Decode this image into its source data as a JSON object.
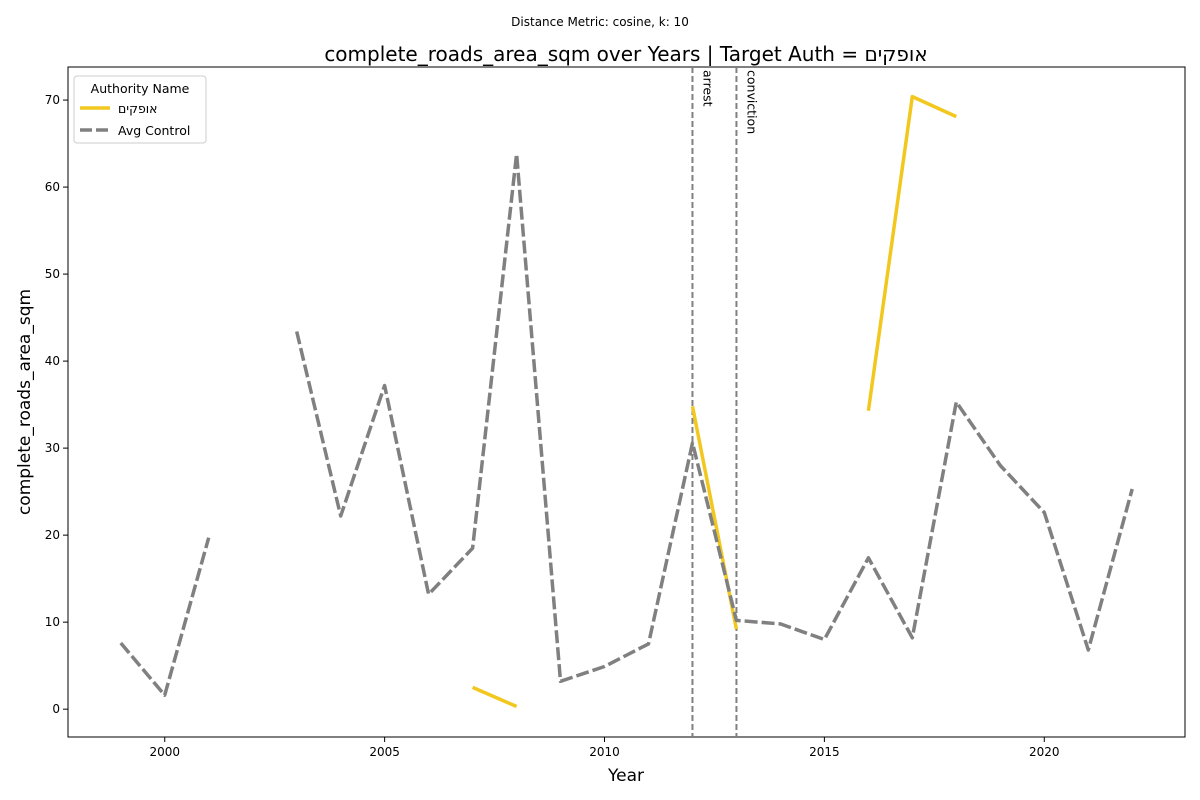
{
  "suptitle": "Distance Metric: cosine, k: 10",
  "chart_data": {
    "type": "line",
    "title": "complete_roads_area_sqm over Years | Target Auth = אופקים",
    "xlabel": "Year",
    "ylabel": "complete_roads_area_sqm",
    "xlim": [
      1997.8,
      2023.2
    ],
    "ylim": [
      -3.2,
      73.8
    ],
    "xticks": [
      2000,
      2005,
      2010,
      2015,
      2020
    ],
    "yticks": [
      0,
      10,
      20,
      30,
      40,
      50,
      60,
      70
    ],
    "grid": false,
    "legend": {
      "title": "Authority Name",
      "placement": "top-left"
    },
    "series": [
      {
        "name": "אופקים",
        "color": "#f2c81f",
        "style": "solid",
        "x": [
          2007,
          2008,
          2012,
          2013,
          2016,
          2017,
          2018
        ],
        "y": [
          2.5,
          0.3,
          34.8,
          9.2,
          34.3,
          70.4,
          68.1
        ],
        "segments": [
          [
            0,
            1
          ],
          [
            2,
            3
          ],
          [
            4,
            5,
            6
          ]
        ]
      },
      {
        "name": "Avg Control",
        "color": "#808080",
        "style": "dashed",
        "x": [
          1999,
          2000,
          2001,
          2003,
          2004,
          2005,
          2006,
          2007,
          2008,
          2009,
          2010,
          2011,
          2012,
          2013,
          2014,
          2015,
          2016,
          2017,
          2018,
          2019,
          2020,
          2021,
          2022
        ],
        "y": [
          7.6,
          1.6,
          19.7,
          43.4,
          22.2,
          37.2,
          13.2,
          18.5,
          63.8,
          3.2,
          4.9,
          7.5,
          30.6,
          10.2,
          9.8,
          8.0,
          17.4,
          8.2,
          35.3,
          28.0,
          22.6,
          6.8,
          25.3
        ],
        "segments": [
          [
            0,
            1,
            2
          ],
          [
            3,
            4,
            5,
            6,
            7,
            8,
            9,
            10,
            11,
            12,
            13,
            14,
            15,
            16,
            17,
            18,
            19,
            20,
            21,
            22
          ]
        ]
      }
    ],
    "events": [
      {
        "x": 2012,
        "label": "arrest"
      },
      {
        "x": 2013,
        "label": "conviction"
      }
    ]
  }
}
